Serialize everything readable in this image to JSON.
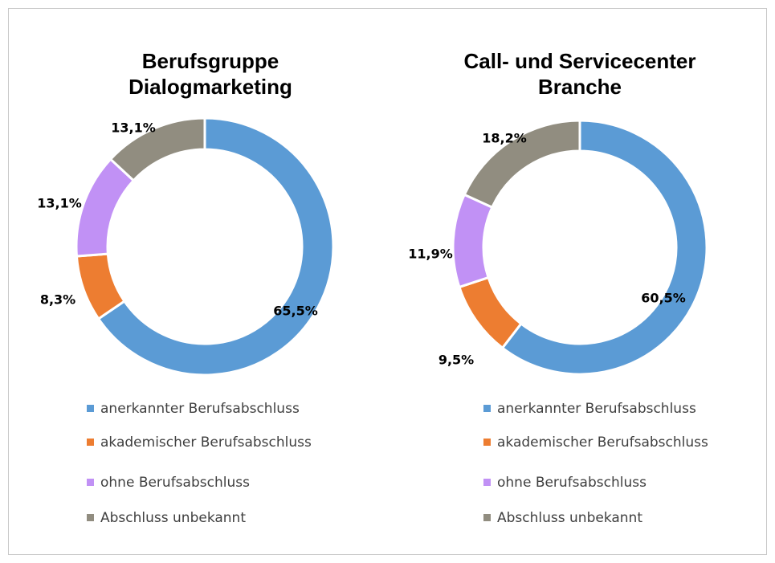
{
  "chart_data": [
    {
      "type": "donut",
      "title": [
        "Berufsgruppe",
        "Dialogmarketing"
      ],
      "categories": [
        "anerkannter Berufsabschluss",
        "akademischer Berufsabschluss",
        "ohne Berufsabschluss",
        "Abschluss unbekannt"
      ],
      "values": [
        65.5,
        8.3,
        13.1,
        13.1
      ],
      "value_labels": [
        "65,5%",
        "8,3%",
        "13,1%",
        "13,1%"
      ],
      "colors": [
        "#5b9bd5",
        "#ed7d31",
        "#c191f5",
        "#918d80"
      ]
    },
    {
      "type": "donut",
      "title": [
        "Call- und Servicecenter",
        "Branche"
      ],
      "categories": [
        "anerkannter Berufsabschluss",
        "akademischer Berufsabschluss",
        "ohne Berufsabschluss",
        "Abschluss unbekannt"
      ],
      "values": [
        60.5,
        9.5,
        11.9,
        18.2
      ],
      "value_labels": [
        "60,5%",
        "9,5%",
        "11,9%",
        "18,2%"
      ],
      "colors": [
        "#5b9bd5",
        "#ed7d31",
        "#c191f5",
        "#918d80"
      ]
    }
  ]
}
